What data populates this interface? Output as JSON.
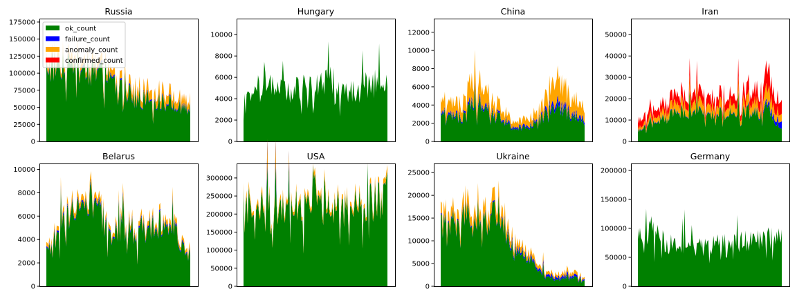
{
  "chart_data": [
    {
      "type": "area",
      "title": "Russia",
      "ylim": [
        0,
        180000
      ],
      "yticks": [
        0,
        25000,
        50000,
        75000,
        100000,
        125000,
        150000,
        175000
      ],
      "ytick_labels": [
        "0",
        "25000",
        "50000",
        "75000",
        "100000",
        "125000",
        "150000",
        "175000"
      ],
      "stacked": true,
      "legend": {
        "placement": "upper-left",
        "entries": [
          "ok_count",
          "failure_count",
          "anomaly_count",
          "confirmed_count"
        ]
      },
      "x_knots": [
        0,
        0.1,
        0.2,
        0.3,
        0.4,
        0.5,
        0.6,
        0.7,
        0.8,
        0.9,
        1
      ],
      "series": [
        {
          "name": "ok_count",
          "color": "#008000",
          "values": [
            110000,
            115000,
            110000,
            105000,
            95000,
            80000,
            65000,
            60000,
            58000,
            52000,
            48000
          ]
        },
        {
          "name": "failure_count",
          "color": "#0000ff",
          "values": [
            2000,
            2000,
            2000,
            2000,
            2000,
            2000,
            2000,
            2000,
            2000,
            2000,
            2000
          ]
        },
        {
          "name": "anomaly_count",
          "color": "#ffa500",
          "values": [
            8000,
            8000,
            9000,
            9000,
            9000,
            9000,
            11000,
            13000,
            14000,
            12000,
            10000
          ]
        },
        {
          "name": "confirmed_count",
          "color": "#ff0000",
          "values": [
            200,
            200,
            200,
            200,
            200,
            200,
            200,
            200,
            200,
            200,
            200
          ]
        }
      ]
    },
    {
      "type": "area",
      "title": "Hungary",
      "ylim": [
        0,
        11500
      ],
      "yticks": [
        0,
        2000,
        4000,
        6000,
        8000,
        10000
      ],
      "ytick_labels": [
        "0",
        "2000",
        "4000",
        "6000",
        "8000",
        "10000"
      ],
      "stacked": true,
      "x_knots": [
        0,
        0.1,
        0.2,
        0.3,
        0.4,
        0.5,
        0.6,
        0.7,
        0.8,
        0.9,
        1
      ],
      "series": [
        {
          "name": "ok_count",
          "color": "#008000",
          "values": [
            3500,
            5000,
            5500,
            4500,
            5000,
            5500,
            6000,
            4500,
            5000,
            5500,
            5000
          ]
        },
        {
          "name": "failure_count",
          "color": "#0000ff",
          "values": [
            0,
            0,
            0,
            0,
            0,
            0,
            0,
            0,
            0,
            0,
            0
          ]
        },
        {
          "name": "anomaly_count",
          "color": "#ffa500",
          "values": [
            0,
            0,
            0,
            0,
            0,
            0,
            0,
            0,
            0,
            0,
            0
          ]
        },
        {
          "name": "confirmed_count",
          "color": "#ff0000",
          "values": [
            0,
            0,
            0,
            0,
            0,
            0,
            0,
            0,
            0,
            0,
            0
          ]
        }
      ]
    },
    {
      "type": "area",
      "title": "China",
      "ylim": [
        0,
        13500
      ],
      "yticks": [
        0,
        2000,
        4000,
        6000,
        8000,
        10000,
        12000
      ],
      "ytick_labels": [
        "0",
        "2000",
        "4000",
        "6000",
        "8000",
        "10000",
        "12000"
      ],
      "stacked": true,
      "x_knots": [
        0,
        0.1,
        0.2,
        0.3,
        0.4,
        0.5,
        0.6,
        0.7,
        0.8,
        0.9,
        1
      ],
      "series": [
        {
          "name": "ok_count",
          "color": "#008000",
          "values": [
            2800,
            2500,
            4000,
            4000,
            2800,
            1500,
            1500,
            2500,
            4200,
            2800,
            2000
          ]
        },
        {
          "name": "failure_count",
          "color": "#0000ff",
          "values": [
            200,
            200,
            300,
            300,
            200,
            200,
            200,
            200,
            600,
            300,
            300
          ]
        },
        {
          "name": "anomaly_count",
          "color": "#ffa500",
          "values": [
            1200,
            1200,
            2200,
            2000,
            1200,
            600,
            800,
            1000,
            3000,
            1600,
            1200
          ]
        },
        {
          "name": "confirmed_count",
          "color": "#ff0000",
          "values": [
            0,
            0,
            0,
            0,
            0,
            0,
            0,
            0,
            0,
            0,
            0
          ]
        }
      ]
    },
    {
      "type": "area",
      "title": "Iran",
      "ylim": [
        0,
        57500
      ],
      "yticks": [
        0,
        10000,
        20000,
        30000,
        40000,
        50000
      ],
      "ytick_labels": [
        "0",
        "10000",
        "20000",
        "30000",
        "40000",
        "50000"
      ],
      "stacked": true,
      "x_knots": [
        0,
        0.1,
        0.2,
        0.3,
        0.4,
        0.5,
        0.6,
        0.7,
        0.8,
        0.9,
        1
      ],
      "series": [
        {
          "name": "ok_count",
          "color": "#008000",
          "values": [
            5000,
            8000,
            12000,
            14000,
            13000,
            13000,
            13000,
            13000,
            14000,
            16000,
            5000
          ]
        },
        {
          "name": "failure_count",
          "color": "#0000ff",
          "values": [
            300,
            300,
            300,
            300,
            300,
            300,
            300,
            300,
            400,
            1200,
            3000
          ]
        },
        {
          "name": "anomaly_count",
          "color": "#ffa500",
          "values": [
            1200,
            2000,
            3500,
            4000,
            4000,
            4000,
            4000,
            4000,
            4500,
            6000,
            3000
          ]
        },
        {
          "name": "confirmed_count",
          "color": "#ff0000",
          "values": [
            3500,
            3500,
            4000,
            4500,
            4500,
            4500,
            4500,
            4500,
            5500,
            9000,
            5500
          ]
        }
      ]
    },
    {
      "type": "area",
      "title": "Belarus",
      "ylim": [
        0,
        10500
      ],
      "yticks": [
        0,
        2000,
        4000,
        6000,
        8000,
        10000
      ],
      "ytick_labels": [
        "0",
        "2000",
        "4000",
        "6000",
        "8000",
        "10000"
      ],
      "stacked": true,
      "x_knots": [
        0,
        0.1,
        0.2,
        0.3,
        0.4,
        0.5,
        0.6,
        0.7,
        0.8,
        0.9,
        1
      ],
      "series": [
        {
          "name": "ok_count",
          "color": "#008000",
          "values": [
            2800,
            5000,
            6500,
            7500,
            5500,
            5000,
            5000,
            4800,
            5500,
            4500,
            2500
          ]
        },
        {
          "name": "failure_count",
          "color": "#0000ff",
          "values": [
            100,
            150,
            150,
            150,
            150,
            150,
            150,
            150,
            150,
            150,
            100
          ]
        },
        {
          "name": "anomaly_count",
          "color": "#ffa500",
          "values": [
            300,
            400,
            500,
            500,
            400,
            400,
            400,
            400,
            400,
            400,
            300
          ]
        },
        {
          "name": "confirmed_count",
          "color": "#ff0000",
          "values": [
            0,
            0,
            0,
            0,
            0,
            0,
            0,
            0,
            0,
            0,
            0
          ]
        }
      ]
    },
    {
      "type": "area",
      "title": "USA",
      "ylim": [
        0,
        340000
      ],
      "yticks": [
        0,
        50000,
        100000,
        150000,
        200000,
        250000,
        300000
      ],
      "ytick_labels": [
        "0",
        "50000",
        "100000",
        "150000",
        "200000",
        "250000",
        "300000"
      ],
      "stacked": true,
      "x_knots": [
        0,
        0.1,
        0.2,
        0.3,
        0.4,
        0.5,
        0.6,
        0.7,
        0.8,
        0.9,
        1
      ],
      "series": [
        {
          "name": "ok_count",
          "color": "#008000",
          "values": [
            225000,
            215000,
            220000,
            225000,
            230000,
            225000,
            220000,
            215000,
            225000,
            230000,
            260000
          ]
        },
        {
          "name": "failure_count",
          "color": "#0000ff",
          "values": [
            1000,
            1000,
            1000,
            1000,
            1000,
            1000,
            1000,
            1000,
            1000,
            1000,
            1000
          ]
        },
        {
          "name": "anomaly_count",
          "color": "#ffa500",
          "values": [
            12000,
            12000,
            12000,
            12000,
            12000,
            12000,
            12000,
            12000,
            12000,
            12000,
            14000
          ]
        },
        {
          "name": "confirmed_count",
          "color": "#ff0000",
          "values": [
            0,
            0,
            0,
            0,
            0,
            0,
            0,
            0,
            0,
            0,
            0
          ]
        }
      ]
    },
    {
      "type": "area",
      "title": "Ukraine",
      "ylim": [
        0,
        27000
      ],
      "yticks": [
        0,
        5000,
        10000,
        15000,
        20000,
        25000
      ],
      "ytick_labels": [
        "0",
        "5000",
        "10000",
        "15000",
        "20000",
        "25000"
      ],
      "stacked": true,
      "x_knots": [
        0,
        0.1,
        0.2,
        0.3,
        0.4,
        0.5,
        0.6,
        0.7,
        0.8,
        0.9,
        1
      ],
      "series": [
        {
          "name": "ok_count",
          "color": "#008000",
          "values": [
            13000,
            14000,
            16000,
            15000,
            16500,
            7500,
            6500,
            3000,
            1500,
            2000,
            1500
          ]
        },
        {
          "name": "failure_count",
          "color": "#0000ff",
          "values": [
            300,
            300,
            300,
            300,
            300,
            600,
            400,
            500,
            500,
            500,
            300
          ]
        },
        {
          "name": "anomaly_count",
          "color": "#ffa500",
          "values": [
            2000,
            2000,
            2500,
            2500,
            2500,
            1500,
            1200,
            800,
            600,
            800,
            500
          ]
        },
        {
          "name": "confirmed_count",
          "color": "#ff0000",
          "values": [
            0,
            0,
            0,
            0,
            0,
            0,
            0,
            0,
            0,
            0,
            0
          ]
        }
      ]
    },
    {
      "type": "area",
      "title": "Germany",
      "ylim": [
        0,
        212000
      ],
      "yticks": [
        0,
        50000,
        100000,
        150000,
        200000
      ],
      "ytick_labels": [
        "0",
        "50000",
        "100000",
        "150000",
        "200000"
      ],
      "stacked": true,
      "x_knots": [
        0,
        0.1,
        0.2,
        0.3,
        0.4,
        0.5,
        0.6,
        0.7,
        0.8,
        0.9,
        1
      ],
      "series": [
        {
          "name": "ok_count",
          "color": "#008000",
          "values": [
            80000,
            100000,
            70000,
            75000,
            65000,
            70000,
            75000,
            75000,
            80000,
            85000,
            80000
          ]
        },
        {
          "name": "failure_count",
          "color": "#0000ff",
          "values": [
            300,
            300,
            300,
            300,
            300,
            300,
            300,
            300,
            300,
            300,
            300
          ]
        },
        {
          "name": "anomaly_count",
          "color": "#ffa500",
          "values": [
            300,
            300,
            300,
            300,
            300,
            300,
            300,
            300,
            300,
            300,
            300
          ]
        },
        {
          "name": "confirmed_count",
          "color": "#ff0000",
          "values": [
            0,
            0,
            0,
            0,
            0,
            0,
            0,
            0,
            0,
            0,
            0
          ]
        }
      ]
    }
  ]
}
